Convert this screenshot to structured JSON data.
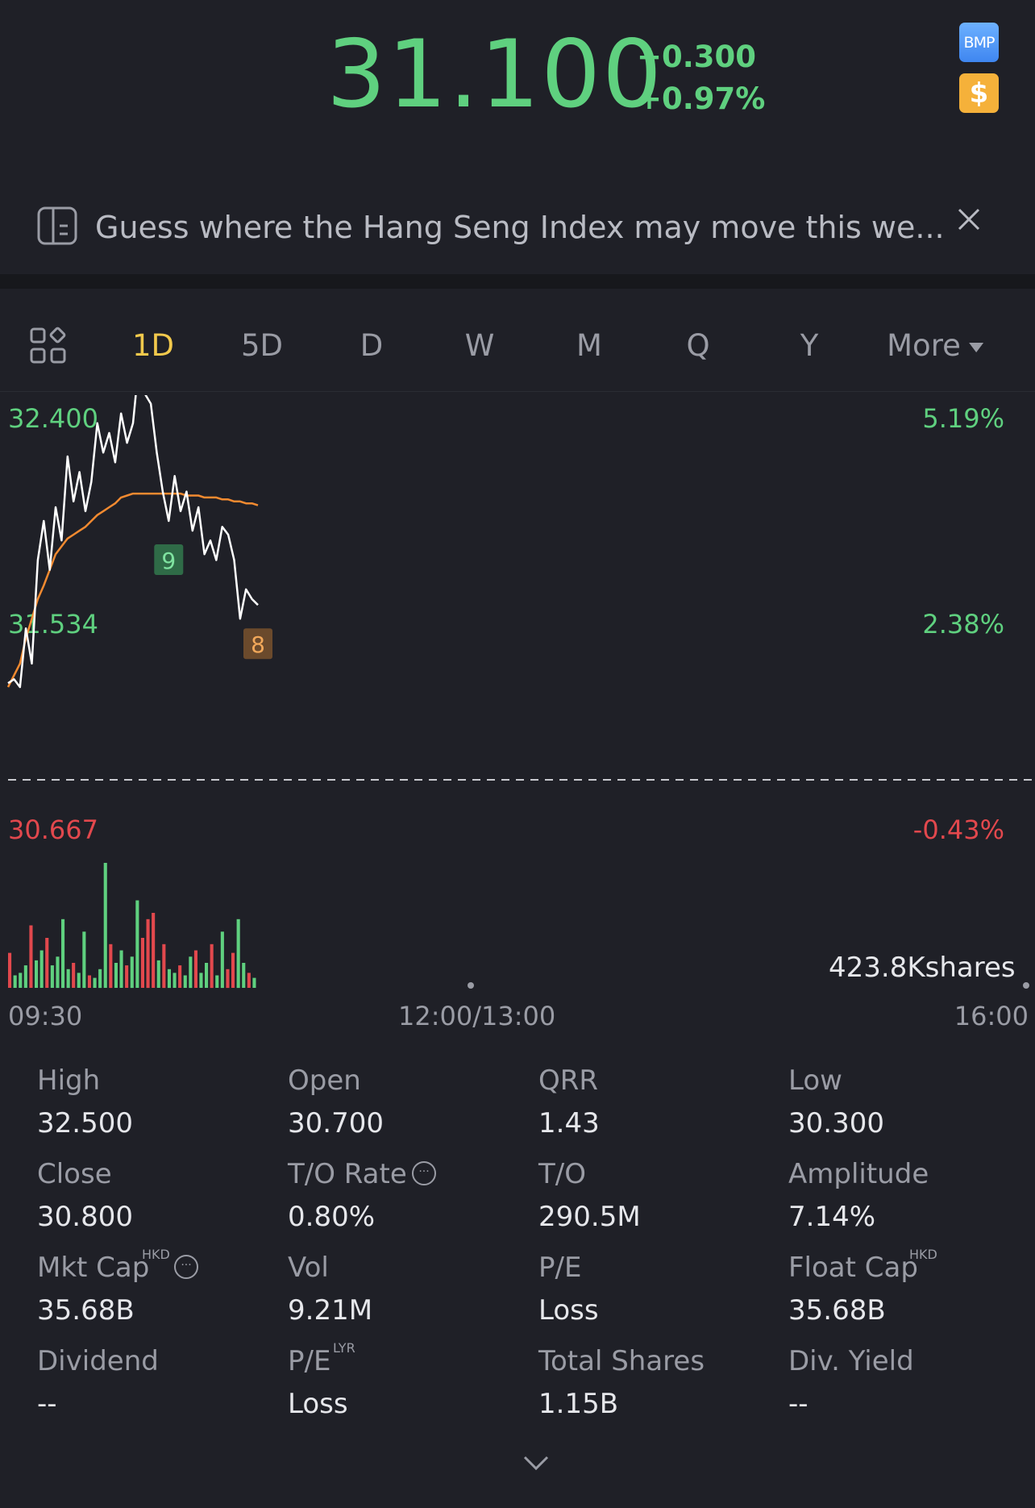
{
  "quote": {
    "price": "31.100",
    "change": "+0.300",
    "change_pct": "+0.97%",
    "badges": [
      {
        "label": "BMP",
        "icon": "bmp-badge-icon"
      },
      {
        "label": "$",
        "icon": "dollar-badge-icon"
      }
    ],
    "up_color": "#5fd07f",
    "down_color": "#e2484d"
  },
  "banner": {
    "icon": "note-icon",
    "text": "Guess where the Hang Seng Index may move this we...",
    "close_icon": "close-icon"
  },
  "tabs": {
    "layout_icon": "grid-layout-icon",
    "items": [
      "1D",
      "5D",
      "D",
      "W",
      "M",
      "Q",
      "Y"
    ],
    "active": "1D",
    "more_label": "More"
  },
  "chart_data": {
    "type": "line",
    "interval": "1D",
    "y_axis_left": [
      "32.400",
      "31.534",
      "30.667"
    ],
    "y_axis_right": [
      "5.19%",
      "2.38%",
      "-0.43%"
    ],
    "ylim": [
      30.667,
      32.4
    ],
    "prev_close": 30.8,
    "x_ticks": [
      "09:30",
      "12:00/13:00",
      "16:00"
    ],
    "series": [
      {
        "name": "",
        "color": "#ffffff",
        "values": [
          30.72,
          30.74,
          30.7,
          31.0,
          30.82,
          31.35,
          31.55,
          31.3,
          31.62,
          31.45,
          31.88,
          31.65,
          31.8,
          31.6,
          31.75,
          32.05,
          31.9,
          32.0,
          31.85,
          32.1,
          31.95,
          32.05,
          32.36,
          32.2,
          32.15,
          31.9,
          31.7,
          31.55,
          31.78,
          31.6,
          31.7,
          31.5,
          31.62,
          31.38,
          31.45,
          31.35,
          31.52,
          31.48,
          31.35,
          31.05,
          31.2,
          31.15,
          31.12
        ]
      },
      {
        "name": "",
        "color": "#f28a30",
        "values": [
          30.7,
          30.76,
          30.82,
          30.95,
          31.05,
          31.15,
          31.22,
          31.3,
          31.38,
          31.42,
          31.46,
          31.48,
          31.5,
          31.52,
          31.55,
          31.58,
          31.6,
          31.62,
          31.64,
          31.67,
          31.68,
          31.69,
          31.69,
          31.69,
          31.69,
          31.69,
          31.69,
          31.69,
          31.69,
          31.69,
          31.68,
          31.68,
          31.68,
          31.67,
          31.67,
          31.67,
          31.66,
          31.66,
          31.65,
          31.65,
          31.64,
          31.64,
          31.63
        ]
      }
    ],
    "markers": [
      {
        "label": "9",
        "color": "#2f6b47",
        "text_color": "#7fe3a0",
        "index": 27
      },
      {
        "label": "8",
        "color": "#6b4a2c",
        "text_color": "#f2a85a",
        "index": 42
      }
    ],
    "volume": {
      "label": "423.8Kshares",
      "bars": [
        {
          "v": 0.28,
          "c": "red"
        },
        {
          "v": 0.1,
          "c": "green"
        },
        {
          "v": 0.12,
          "c": "green"
        },
        {
          "v": 0.18,
          "c": "green"
        },
        {
          "v": 0.5,
          "c": "red"
        },
        {
          "v": 0.22,
          "c": "green"
        },
        {
          "v": 0.3,
          "c": "green"
        },
        {
          "v": 0.4,
          "c": "red"
        },
        {
          "v": 0.18,
          "c": "green"
        },
        {
          "v": 0.25,
          "c": "green"
        },
        {
          "v": 0.55,
          "c": "green"
        },
        {
          "v": 0.15,
          "c": "green"
        },
        {
          "v": 0.2,
          "c": "red"
        },
        {
          "v": 0.12,
          "c": "green"
        },
        {
          "v": 0.45,
          "c": "green"
        },
        {
          "v": 0.1,
          "c": "red"
        },
        {
          "v": 0.08,
          "c": "green"
        },
        {
          "v": 0.15,
          "c": "green"
        },
        {
          "v": 1.0,
          "c": "green"
        },
        {
          "v": 0.35,
          "c": "red"
        },
        {
          "v": 0.2,
          "c": "green"
        },
        {
          "v": 0.3,
          "c": "green"
        },
        {
          "v": 0.18,
          "c": "red"
        },
        {
          "v": 0.25,
          "c": "green"
        },
        {
          "v": 0.7,
          "c": "green"
        },
        {
          "v": 0.4,
          "c": "red"
        },
        {
          "v": 0.55,
          "c": "red"
        },
        {
          "v": 0.6,
          "c": "red"
        },
        {
          "v": 0.22,
          "c": "green"
        },
        {
          "v": 0.35,
          "c": "red"
        },
        {
          "v": 0.15,
          "c": "green"
        },
        {
          "v": 0.12,
          "c": "green"
        },
        {
          "v": 0.18,
          "c": "red"
        },
        {
          "v": 0.1,
          "c": "green"
        },
        {
          "v": 0.25,
          "c": "green"
        },
        {
          "v": 0.3,
          "c": "red"
        },
        {
          "v": 0.12,
          "c": "green"
        },
        {
          "v": 0.2,
          "c": "green"
        },
        {
          "v": 0.35,
          "c": "red"
        },
        {
          "v": 0.1,
          "c": "green"
        },
        {
          "v": 0.45,
          "c": "green"
        },
        {
          "v": 0.15,
          "c": "red"
        },
        {
          "v": 0.28,
          "c": "red"
        },
        {
          "v": 0.55,
          "c": "green"
        },
        {
          "v": 0.2,
          "c": "green"
        },
        {
          "v": 0.12,
          "c": "red"
        },
        {
          "v": 0.08,
          "c": "green"
        }
      ]
    }
  },
  "stats": [
    [
      {
        "label": "High",
        "value": "32.500"
      },
      {
        "label": "Open",
        "value": "30.700"
      },
      {
        "label": "QRR",
        "value": "1.43"
      },
      {
        "label": "Low",
        "value": "30.300"
      }
    ],
    [
      {
        "label": "Close",
        "value": "30.800"
      },
      {
        "label": "T/O Rate",
        "value": "0.80%",
        "info": true
      },
      {
        "label": "T/O",
        "value": "290.5M"
      },
      {
        "label": "Amplitude",
        "value": "7.14%"
      }
    ],
    [
      {
        "label": "Mkt Cap",
        "value": "35.68B",
        "sup": "HKD",
        "info": true
      },
      {
        "label": "Vol",
        "value": "9.21M"
      },
      {
        "label": "P/E",
        "value": "Loss"
      },
      {
        "label": "Float Cap",
        "value": "35.68B",
        "sup": "HKD"
      }
    ],
    [
      {
        "label": "Dividend",
        "value": "--"
      },
      {
        "label": "P/E",
        "value": "Loss",
        "sup": "LYR"
      },
      {
        "label": "Total Shares",
        "value": "1.15B"
      },
      {
        "label": "Div. Yield",
        "value": "--"
      }
    ]
  ],
  "expand_icon": "chevron-down-icon"
}
